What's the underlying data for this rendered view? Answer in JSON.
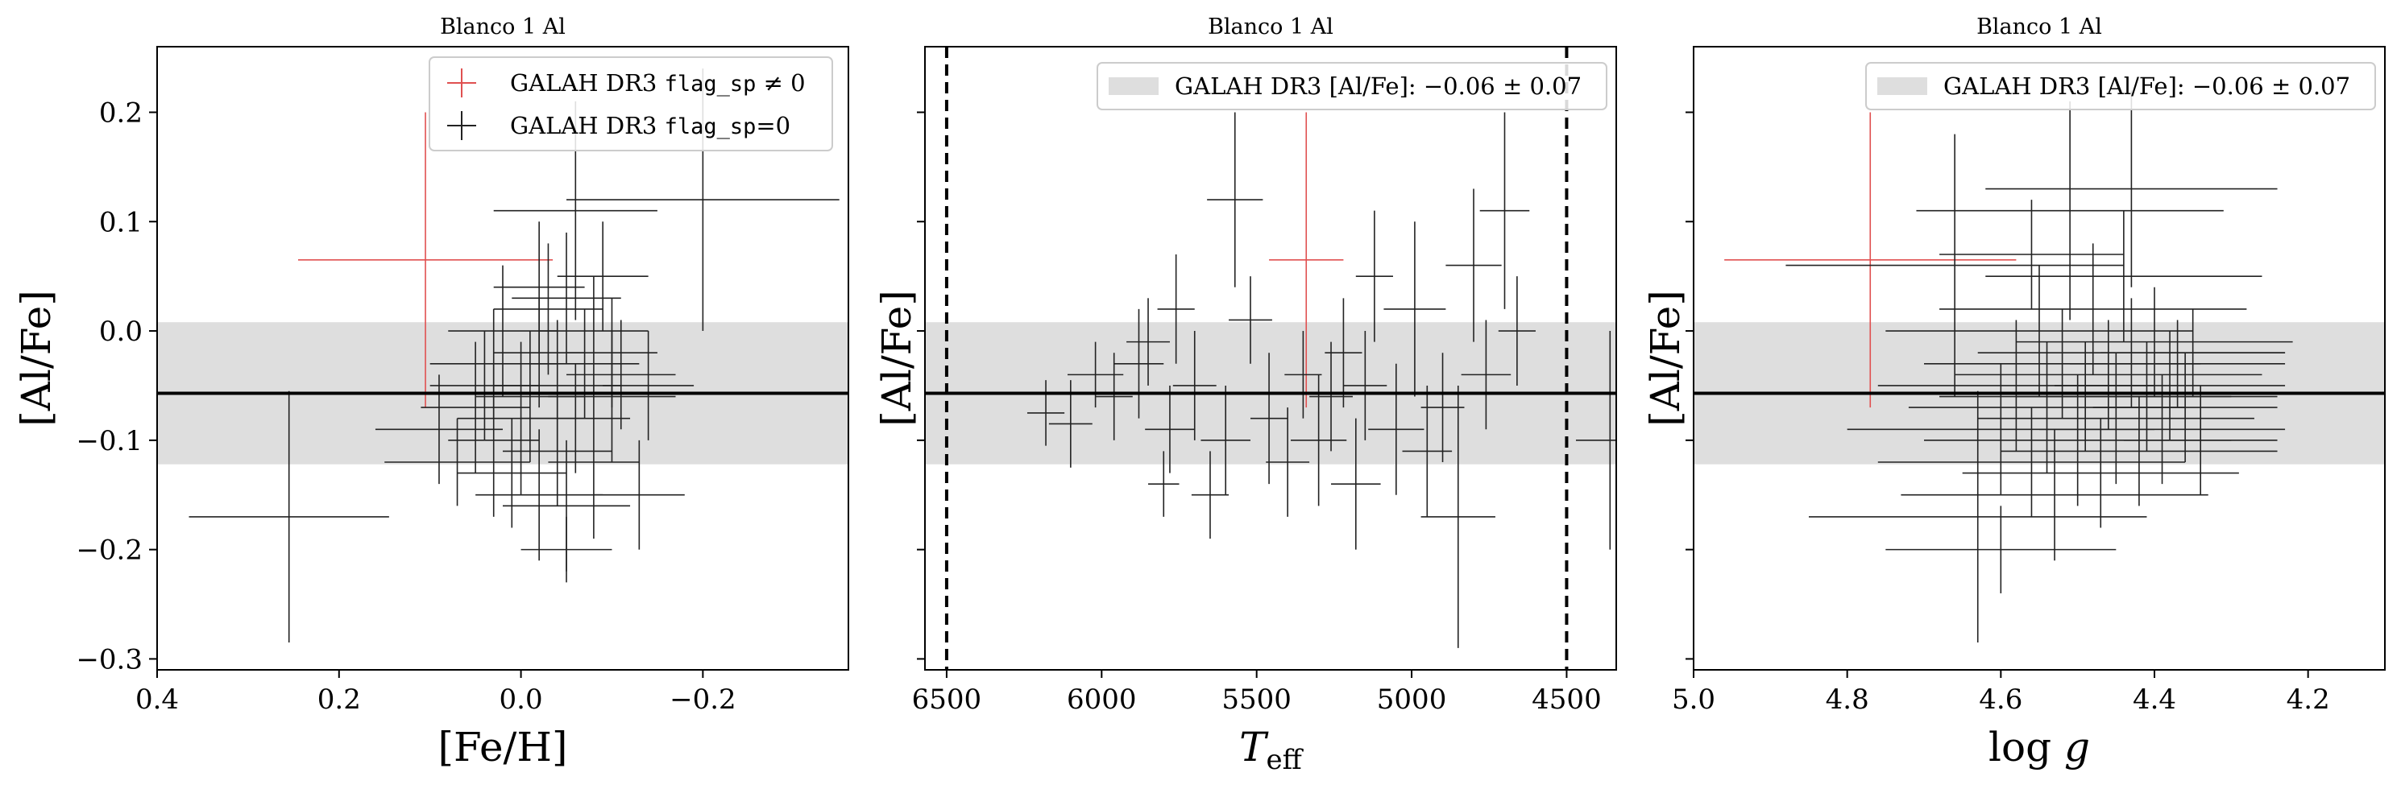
{
  "chart_data": [
    {
      "type": "scatter",
      "title": "Blanco 1 Al",
      "xlabel": "[Fe/H]",
      "ylabel": "[Al/Fe]",
      "xlim": [
        0.4,
        -0.36
      ],
      "ylim": [
        -0.31,
        0.26
      ],
      "xticks": [
        {
          "value": 0.4,
          "label": "0.4"
        },
        {
          "value": 0.2,
          "label": "0.2"
        },
        {
          "value": 0.0,
          "label": "0.0"
        },
        {
          "value": -0.2,
          "label": "−0.2"
        }
      ],
      "yticks": [
        {
          "value": 0.2,
          "label": "0.2"
        },
        {
          "value": 0.1,
          "label": "0.1"
        },
        {
          "value": 0.0,
          "label": "0.0"
        },
        {
          "value": -0.1,
          "label": "−0.1"
        },
        {
          "value": -0.2,
          "label": "−0.2"
        },
        {
          "value": -0.3,
          "label": "−0.3"
        }
      ],
      "band": {
        "center": -0.057,
        "low": -0.122,
        "high": 0.008
      },
      "legend": {
        "placement": "top-right",
        "entries": [
          {
            "prefix": "GALAH DR3 ",
            "code": "flag_sp",
            "suffix": " ≠ 0",
            "color": "#e05050",
            "style": "cross"
          },
          {
            "prefix": "GALAH DR3 ",
            "code": "flag_sp",
            "suffix": "=0",
            "color": "#222222",
            "style": "cross"
          }
        ]
      },
      "series": [
        {
          "name": "GALAH DR3 flag_sp ≠ 0",
          "color": "#e05050",
          "points": [
            {
              "x": 0.105,
              "y": 0.065,
              "xerr": 0.14,
              "yerr": 0.135
            }
          ]
        },
        {
          "name": "GALAH DR3 flag_sp=0",
          "color": "#222222",
          "points": [
            {
              "x": 0.255,
              "y": -0.17,
              "xerr": 0.11,
              "yerr": 0.115
            },
            {
              "x": 0.09,
              "y": -0.09,
              "xerr": 0.07,
              "yerr": 0.05
            },
            {
              "x": 0.07,
              "y": -0.12,
              "xerr": 0.08,
              "yerr": 0.04
            },
            {
              "x": 0.05,
              "y": -0.07,
              "xerr": 0.06,
              "yerr": 0.06
            },
            {
              "x": 0.04,
              "y": -0.05,
              "xerr": 0.06,
              "yerr": 0.05
            },
            {
              "x": 0.03,
              "y": -0.1,
              "xerr": 0.05,
              "yerr": 0.07
            },
            {
              "x": 0.03,
              "y": -0.03,
              "xerr": 0.07,
              "yerr": 0.05
            },
            {
              "x": 0.02,
              "y": 0.0,
              "xerr": 0.06,
              "yerr": 0.06
            },
            {
              "x": 0.01,
              "y": -0.13,
              "xerr": 0.06,
              "yerr": 0.05
            },
            {
              "x": 0.0,
              "y": -0.08,
              "xerr": 0.07,
              "yerr": 0.07
            },
            {
              "x": -0.01,
              "y": -0.06,
              "xerr": 0.06,
              "yerr": 0.06
            },
            {
              "x": -0.02,
              "y": -0.15,
              "xerr": 0.07,
              "yerr": 0.06
            },
            {
              "x": -0.02,
              "y": -0.02,
              "xerr": 0.05,
              "yerr": 0.05
            },
            {
              "x": -0.03,
              "y": 0.02,
              "xerr": 0.06,
              "yerr": 0.06
            },
            {
              "x": -0.04,
              "y": -0.11,
              "xerr": 0.06,
              "yerr": 0.05
            },
            {
              "x": -0.04,
              "y": -0.05,
              "xerr": 0.07,
              "yerr": 0.06
            },
            {
              "x": -0.05,
              "y": 0.03,
              "xerr": 0.06,
              "yerr": 0.06
            },
            {
              "x": -0.05,
              "y": -0.16,
              "xerr": 0.07,
              "yerr": 0.06
            },
            {
              "x": -0.06,
              "y": -0.08,
              "xerr": 0.06,
              "yerr": 0.05
            },
            {
              "x": -0.06,
              "y": 0.11,
              "xerr": 0.09,
              "yerr": 0.1
            },
            {
              "x": -0.07,
              "y": -0.03,
              "xerr": 0.06,
              "yerr": 0.05
            },
            {
              "x": -0.08,
              "y": 0.0,
              "xerr": 0.06,
              "yerr": 0.05
            },
            {
              "x": -0.08,
              "y": -0.12,
              "xerr": 0.05,
              "yerr": 0.07
            },
            {
              "x": -0.09,
              "y": 0.05,
              "xerr": 0.05,
              "yerr": 0.05
            },
            {
              "x": -0.1,
              "y": -0.06,
              "xerr": 0.07,
              "yerr": 0.06
            },
            {
              "x": -0.1,
              "y": -0.02,
              "xerr": 0.05,
              "yerr": 0.05
            },
            {
              "x": -0.11,
              "y": -0.04,
              "xerr": 0.06,
              "yerr": 0.05
            },
            {
              "x": -0.13,
              "y": -0.15,
              "xerr": 0.05,
              "yerr": 0.05
            },
            {
              "x": -0.14,
              "y": -0.05,
              "xerr": 0.05,
              "yerr": 0.05
            },
            {
              "x": -0.2,
              "y": 0.12,
              "xerr": 0.15,
              "yerr": 0.12
            },
            {
              "x": -0.05,
              "y": -0.2,
              "xerr": 0.05,
              "yerr": 0.03
            },
            {
              "x": -0.02,
              "y": 0.04,
              "xerr": 0.05,
              "yerr": 0.06
            }
          ]
        }
      ]
    },
    {
      "type": "scatter",
      "title": "Blanco 1 Al",
      "xlabel": "T_eff",
      "ylabel": "[Al/Fe]",
      "xlim": [
        6570,
        4340
      ],
      "ylim": [
        -0.31,
        0.26
      ],
      "xticks": [
        {
          "value": 6500,
          "label": "6500"
        },
        {
          "value": 6000,
          "label": "6000"
        },
        {
          "value": 5500,
          "label": "5500"
        },
        {
          "value": 5000,
          "label": "5000"
        },
        {
          "value": 4500,
          "label": "4500"
        }
      ],
      "yticks": [
        {
          "value": 0.2
        },
        {
          "value": 0.1
        },
        {
          "value": 0.0
        },
        {
          "value": -0.1
        },
        {
          "value": -0.2
        },
        {
          "value": -0.3
        }
      ],
      "band": {
        "center": -0.057,
        "low": -0.122,
        "high": 0.008
      },
      "vlines": [
        6500,
        4500
      ],
      "legend": {
        "placement": "top-right",
        "entries": [
          {
            "prefix": "GALAH DR3 [Al/Fe]:  −0.06 ± 0.07",
            "color": "#dedede",
            "style": "patch"
          }
        ]
      },
      "series": [
        {
          "name": "GALAH DR3 flag_sp ≠ 0",
          "color": "#e05050",
          "points": [
            {
              "x": 5340,
              "y": 0.065,
              "xerr": 120,
              "yerr": 0.135
            }
          ]
        },
        {
          "name": "GALAH DR3 flag_sp=0",
          "color": "#222222",
          "points": [
            {
              "x": 6180,
              "y": -0.075,
              "xerr": 60,
              "yerr": 0.03
            },
            {
              "x": 6100,
              "y": -0.085,
              "xerr": 70,
              "yerr": 0.04
            },
            {
              "x": 6020,
              "y": -0.04,
              "xerr": 90,
              "yerr": 0.03
            },
            {
              "x": 5960,
              "y": -0.06,
              "xerr": 60,
              "yerr": 0.04
            },
            {
              "x": 5880,
              "y": -0.03,
              "xerr": 80,
              "yerr": 0.05
            },
            {
              "x": 5850,
              "y": -0.01,
              "xerr": 70,
              "yerr": 0.04
            },
            {
              "x": 5800,
              "y": -0.14,
              "xerr": 50,
              "yerr": 0.03
            },
            {
              "x": 5780,
              "y": -0.09,
              "xerr": 80,
              "yerr": 0.04
            },
            {
              "x": 5760,
              "y": 0.02,
              "xerr": 60,
              "yerr": 0.05
            },
            {
              "x": 5700,
              "y": -0.05,
              "xerr": 70,
              "yerr": 0.05
            },
            {
              "x": 5650,
              "y": -0.15,
              "xerr": 60,
              "yerr": 0.04
            },
            {
              "x": 5600,
              "y": -0.1,
              "xerr": 80,
              "yerr": 0.05
            },
            {
              "x": 5570,
              "y": 0.12,
              "xerr": 90,
              "yerr": 0.08
            },
            {
              "x": 5520,
              "y": 0.01,
              "xerr": 70,
              "yerr": 0.04
            },
            {
              "x": 5460,
              "y": -0.08,
              "xerr": 60,
              "yerr": 0.06
            },
            {
              "x": 5400,
              "y": -0.12,
              "xerr": 70,
              "yerr": 0.05
            },
            {
              "x": 5350,
              "y": -0.04,
              "xerr": 60,
              "yerr": 0.04
            },
            {
              "x": 5300,
              "y": -0.1,
              "xerr": 90,
              "yerr": 0.06
            },
            {
              "x": 5260,
              "y": -0.06,
              "xerr": 70,
              "yerr": 0.05
            },
            {
              "x": 5220,
              "y": -0.02,
              "xerr": 60,
              "yerr": 0.05
            },
            {
              "x": 5180,
              "y": -0.14,
              "xerr": 80,
              "yerr": 0.06
            },
            {
              "x": 5150,
              "y": -0.05,
              "xerr": 70,
              "yerr": 0.05
            },
            {
              "x": 5120,
              "y": 0.05,
              "xerr": 60,
              "yerr": 0.06
            },
            {
              "x": 5050,
              "y": -0.09,
              "xerr": 90,
              "yerr": 0.06
            },
            {
              "x": 4990,
              "y": 0.02,
              "xerr": 100,
              "yerr": 0.08
            },
            {
              "x": 4950,
              "y": -0.11,
              "xerr": 80,
              "yerr": 0.06
            },
            {
              "x": 4900,
              "y": -0.07,
              "xerr": 70,
              "yerr": 0.05
            },
            {
              "x": 4850,
              "y": -0.17,
              "xerr": 120,
              "yerr": 0.12
            },
            {
              "x": 4800,
              "y": 0.06,
              "xerr": 90,
              "yerr": 0.07
            },
            {
              "x": 4760,
              "y": -0.04,
              "xerr": 80,
              "yerr": 0.05
            },
            {
              "x": 4700,
              "y": 0.11,
              "xerr": 80,
              "yerr": 0.09
            },
            {
              "x": 4660,
              "y": 0.0,
              "xerr": 60,
              "yerr": 0.05
            },
            {
              "x": 4360,
              "y": -0.1,
              "xerr": 110,
              "yerr": 0.1
            }
          ]
        }
      ]
    },
    {
      "type": "scatter",
      "title": "Blanco 1 Al",
      "xlabel": "log g",
      "ylabel": "[Al/Fe]",
      "xlim": [
        5.0,
        4.1
      ],
      "ylim": [
        -0.31,
        0.26
      ],
      "xticks": [
        {
          "value": 5.0,
          "label": "5.0"
        },
        {
          "value": 4.8,
          "label": "4.8"
        },
        {
          "value": 4.6,
          "label": "4.6"
        },
        {
          "value": 4.4,
          "label": "4.4"
        },
        {
          "value": 4.2,
          "label": "4.2"
        }
      ],
      "yticks": [
        {
          "value": 0.2
        },
        {
          "value": 0.1
        },
        {
          "value": 0.0
        },
        {
          "value": -0.1
        },
        {
          "value": -0.2
        },
        {
          "value": -0.3
        }
      ],
      "band": {
        "center": -0.057,
        "low": -0.122,
        "high": 0.008
      },
      "legend": {
        "placement": "top-right",
        "entries": [
          {
            "prefix": "GALAH DR3 [Al/Fe]:  −0.06 ± 0.07",
            "color": "#dedede",
            "style": "patch"
          }
        ]
      },
      "series": [
        {
          "name": "GALAH DR3 flag_sp ≠ 0",
          "color": "#e05050",
          "points": [
            {
              "x": 4.77,
              "y": 0.065,
              "xerr": 0.19,
              "yerr": 0.135
            }
          ]
        },
        {
          "name": "GALAH DR3 flag_sp=0",
          "color": "#222222",
          "points": [
            {
              "x": 4.63,
              "y": -0.17,
              "xerr": 0.22,
              "yerr": 0.115
            },
            {
              "x": 4.66,
              "y": 0.06,
              "xerr": 0.22,
              "yerr": 0.12
            },
            {
              "x": 4.6,
              "y": -0.09,
              "xerr": 0.2,
              "yerr": 0.06
            },
            {
              "x": 4.58,
              "y": -0.05,
              "xerr": 0.18,
              "yerr": 0.06
            },
            {
              "x": 4.56,
              "y": -0.12,
              "xerr": 0.2,
              "yerr": 0.05
            },
            {
              "x": 4.55,
              "y": 0.0,
              "xerr": 0.2,
              "yerr": 0.06
            },
            {
              "x": 4.54,
              "y": -0.07,
              "xerr": 0.18,
              "yerr": 0.06
            },
            {
              "x": 4.53,
              "y": -0.15,
              "xerr": 0.2,
              "yerr": 0.06
            },
            {
              "x": 4.52,
              "y": -0.03,
              "xerr": 0.18,
              "yerr": 0.05
            },
            {
              "x": 4.51,
              "y": 0.11,
              "xerr": 0.2,
              "yerr": 0.1
            },
            {
              "x": 4.5,
              "y": -0.1,
              "xerr": 0.2,
              "yerr": 0.06
            },
            {
              "x": 4.49,
              "y": -0.06,
              "xerr": 0.19,
              "yerr": 0.05
            },
            {
              "x": 4.48,
              "y": 0.02,
              "xerr": 0.2,
              "yerr": 0.06
            },
            {
              "x": 4.47,
              "y": -0.13,
              "xerr": 0.18,
              "yerr": 0.05
            },
            {
              "x": 4.46,
              "y": -0.04,
              "xerr": 0.2,
              "yerr": 0.05
            },
            {
              "x": 4.45,
              "y": -0.08,
              "xerr": 0.18,
              "yerr": 0.06
            },
            {
              "x": 4.44,
              "y": 0.05,
              "xerr": 0.18,
              "yerr": 0.06
            },
            {
              "x": 4.43,
              "y": -0.02,
              "xerr": 0.2,
              "yerr": 0.05
            },
            {
              "x": 4.43,
              "y": 0.13,
              "xerr": 0.19,
              "yerr": 0.09
            },
            {
              "x": 4.42,
              "y": -0.11,
              "xerr": 0.18,
              "yerr": 0.05
            },
            {
              "x": 4.41,
              "y": -0.06,
              "xerr": 0.17,
              "yerr": 0.05
            },
            {
              "x": 4.4,
              "y": -0.01,
              "xerr": 0.18,
              "yerr": 0.05
            },
            {
              "x": 4.39,
              "y": -0.09,
              "xerr": 0.16,
              "yerr": 0.05
            },
            {
              "x": 4.38,
              "y": -0.05,
              "xerr": 0.15,
              "yerr": 0.05
            },
            {
              "x": 4.37,
              "y": -0.03,
              "xerr": 0.14,
              "yerr": 0.04
            },
            {
              "x": 4.36,
              "y": -0.07,
              "xerr": 0.12,
              "yerr": 0.05
            },
            {
              "x": 4.35,
              "y": -0.02,
              "xerr": 0.12,
              "yerr": 0.04
            },
            {
              "x": 4.34,
              "y": -0.1,
              "xerr": 0.1,
              "yerr": 0.05
            },
            {
              "x": 4.6,
              "y": -0.2,
              "xerr": 0.15,
              "yerr": 0.04
            },
            {
              "x": 4.56,
              "y": 0.07,
              "xerr": 0.12,
              "yerr": 0.05
            }
          ]
        }
      ]
    }
  ]
}
